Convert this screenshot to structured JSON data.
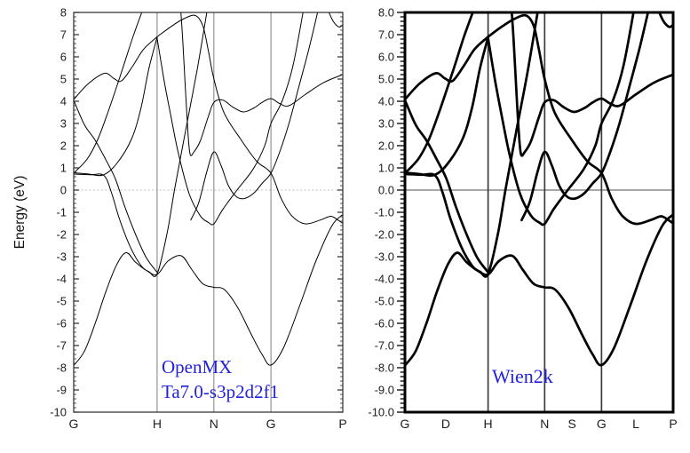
{
  "figure": {
    "background": "#ffffff",
    "curve_color": "#000000",
    "annotation_color": "#2222dd"
  },
  "left_panel": {
    "name": "openmx",
    "ylabel": "Energy (eV)",
    "annotation": {
      "line1": "OpenMX",
      "line2": "Ta7.0-s3p2d2f1"
    },
    "y_tick_labels": [
      "8",
      "7",
      "6",
      "5",
      "4",
      "3",
      "2",
      "1",
      "0",
      "-1",
      "-2",
      "-3",
      "-4",
      "-5",
      "-6",
      "-7",
      "-8",
      "-9",
      "-10"
    ],
    "x_ticks": [
      {
        "label": "G",
        "t": 0,
        "line": false
      },
      {
        "label": "H",
        "t": 0.31,
        "line": true
      },
      {
        "label": "N",
        "t": 0.521,
        "line": true
      },
      {
        "label": "G",
        "t": 0.733,
        "line": true
      },
      {
        "label": "P",
        "t": 1,
        "line": false
      }
    ]
  },
  "right_panel": {
    "name": "wien2k",
    "annotation": {
      "line1": "Wien2k"
    },
    "y_tick_labels": [
      "8.0",
      "7.0",
      "6.0",
      "5.0",
      "4.0",
      "3.0",
      "2.0",
      "1.0",
      "0.0",
      "-1.0",
      "-2.0",
      "-3.0",
      "-4.0",
      "-5.0",
      "-6.0",
      "-7.0",
      "-8.0",
      "-9.0",
      "-10.0"
    ],
    "x_ticks": [
      {
        "label": "G",
        "t": 0,
        "line": false
      },
      {
        "label": "D",
        "t": 0.152,
        "line": false
      },
      {
        "label": "H",
        "t": 0.31,
        "line": true
      },
      {
        "label": "N",
        "t": 0.521,
        "line": true
      },
      {
        "label": "S",
        "t": 0.623,
        "line": false
      },
      {
        "label": "G",
        "t": 0.733,
        "line": true
      },
      {
        "label": "L",
        "t": 0.861,
        "line": false
      },
      {
        "label": "P",
        "t": 1,
        "line": false
      }
    ]
  },
  "chart_data": {
    "type": "line",
    "title": "",
    "xlabel": "",
    "ylabel": "Energy (eV)",
    "ylim": [
      -10,
      8
    ],
    "fermi_level": 0,
    "x_unit": "fraction along k-path G-H-N-G-P",
    "legend": "none",
    "grid": "vertical lines at high-symmetry points; horizontal line at E=0",
    "panels": [
      {
        "label": "OpenMX Ta7.0-s3p2d2f1",
        "line_width": 1.0,
        "kpath": [
          "G",
          "H",
          "N",
          "G",
          "P"
        ],
        "kpath_t": [
          0,
          0.31,
          0.521,
          0.733,
          1
        ]
      },
      {
        "label": "Wien2k",
        "line_width": 2.7,
        "kpath": [
          "G",
          "D",
          "H",
          "N",
          "S",
          "G",
          "L",
          "P"
        ],
        "kpath_t": [
          0,
          0.152,
          0.31,
          0.521,
          0.623,
          0.733,
          0.861,
          1
        ]
      }
    ],
    "bands": [
      [
        [
          0,
          -7.9
        ],
        [
          0.04,
          -7.25
        ],
        [
          0.08,
          -6.0
        ],
        [
          0.12,
          -4.55
        ],
        [
          0.16,
          -3.35
        ],
        [
          0.195,
          -2.82
        ],
        [
          0.23,
          -3.25
        ],
        [
          0.27,
          -3.62
        ],
        [
          0.31,
          -3.8
        ],
        [
          0.35,
          -3.2
        ],
        [
          0.4,
          -2.96
        ],
        [
          0.44,
          -3.6
        ],
        [
          0.48,
          -4.22
        ],
        [
          0.521,
          -4.38
        ],
        [
          0.56,
          -4.48
        ],
        [
          0.61,
          -5.3
        ],
        [
          0.66,
          -6.5
        ],
        [
          0.7,
          -7.4
        ],
        [
          0.733,
          -7.88
        ],
        [
          0.78,
          -7.1
        ],
        [
          0.84,
          -5.2
        ],
        [
          0.9,
          -3.2
        ],
        [
          0.96,
          -1.6
        ],
        [
          1,
          -1.1
        ]
      ],
      [
        [
          0,
          0.72
        ],
        [
          0.06,
          0.69
        ],
        [
          0.112,
          0.66
        ],
        [
          0.14,
          -0.1
        ],
        [
          0.17,
          -1.3
        ],
        [
          0.21,
          -2.55
        ],
        [
          0.25,
          -3.4
        ],
        [
          0.28,
          -3.68
        ],
        [
          0.31,
          -3.78
        ],
        [
          0.347,
          -1.95
        ],
        [
          0.376,
          0.1
        ],
        [
          0.42,
          2.95
        ],
        [
          0.46,
          5.5
        ],
        [
          0.5,
          8.4
        ]
      ],
      [
        [
          0,
          0.78
        ],
        [
          0.05,
          0.73
        ],
        [
          0.11,
          0.68
        ],
        [
          0.16,
          1.2
        ],
        [
          0.215,
          2.3
        ],
        [
          0.25,
          3.7
        ],
        [
          0.28,
          5.5
        ],
        [
          0.31,
          6.88
        ]
      ],
      [
        [
          0,
          0.76
        ],
        [
          0.05,
          1.4
        ],
        [
          0.09,
          2.3
        ],
        [
          0.13,
          3.6
        ],
        [
          0.18,
          5.4
        ],
        [
          0.22,
          6.9
        ],
        [
          0.265,
          8.4
        ]
      ],
      [
        [
          0,
          4.05
        ],
        [
          0.04,
          2.94
        ],
        [
          0.079,
          2.26
        ],
        [
          0.12,
          1.35
        ],
        [
          0.155,
          0.5
        ],
        [
          0.19,
          -0.75
        ],
        [
          0.23,
          -2.0
        ],
        [
          0.27,
          -3.05
        ],
        [
          0.31,
          -3.7
        ]
      ],
      [
        [
          0,
          4.08
        ],
        [
          0.055,
          4.8
        ],
        [
          0.115,
          5.26
        ],
        [
          0.15,
          5.02
        ],
        [
          0.178,
          4.92
        ],
        [
          0.22,
          5.6
        ],
        [
          0.26,
          6.35
        ],
        [
          0.31,
          6.9
        ]
      ],
      [
        [
          0.31,
          6.9
        ],
        [
          0.36,
          7.35
        ],
        [
          0.41,
          7.72
        ],
        [
          0.452,
          7.86
        ],
        [
          0.48,
          7.4
        ],
        [
          0.5,
          6.3
        ],
        [
          0.521,
          5.0
        ],
        [
          0.558,
          3.5
        ],
        [
          0.62,
          2.3
        ],
        [
          0.68,
          1.3
        ],
        [
          0.733,
          0.76
        ],
        [
          0.77,
          -0.35
        ],
        [
          0.81,
          -1.15
        ],
        [
          0.86,
          -1.52
        ],
        [
          0.92,
          -1.33
        ],
        [
          0.955,
          -1.18
        ],
        [
          0.98,
          -1.33
        ],
        [
          1,
          -1.5
        ]
      ],
      [
        [
          0.396,
          8.4
        ],
        [
          0.405,
          6.8
        ],
        [
          0.415,
          4.6
        ],
        [
          0.425,
          2.5
        ],
        [
          0.433,
          1.6
        ],
        [
          0.447,
          1.72
        ],
        [
          0.47,
          2.2
        ],
        [
          0.5,
          3.3
        ],
        [
          0.521,
          3.95
        ],
        [
          0.555,
          4.05
        ],
        [
          0.59,
          3.75
        ],
        [
          0.63,
          3.52
        ],
        [
          0.67,
          3.7
        ],
        [
          0.7,
          3.95
        ],
        [
          0.733,
          4.12
        ],
        [
          0.765,
          3.9
        ],
        [
          0.8,
          3.8
        ],
        [
          0.86,
          4.3
        ],
        [
          0.93,
          4.85
        ],
        [
          1,
          5.2
        ]
      ],
      [
        [
          0.31,
          6.85
        ],
        [
          0.335,
          5.0
        ],
        [
          0.36,
          3.4
        ],
        [
          0.39,
          1.6
        ],
        [
          0.43,
          -0.2
        ],
        [
          0.47,
          -1.15
        ],
        [
          0.5,
          -1.45
        ],
        [
          0.521,
          -1.52
        ],
        [
          0.555,
          -0.85
        ],
        [
          0.607,
          0.0
        ],
        [
          0.667,
          0.95
        ],
        [
          0.71,
          2.0
        ],
        [
          0.733,
          3.0
        ],
        [
          0.776,
          4.05
        ],
        [
          0.815,
          5.6
        ],
        [
          0.858,
          8.4
        ]
      ],
      [
        [
          0.435,
          -1.35
        ],
        [
          0.465,
          -0.55
        ],
        [
          0.495,
          0.85
        ],
        [
          0.521,
          1.72
        ],
        [
          0.548,
          1.1
        ],
        [
          0.575,
          0.2
        ],
        [
          0.605,
          -0.3
        ],
        [
          0.635,
          -0.38
        ],
        [
          0.67,
          -0.13
        ],
        [
          0.7,
          0.3
        ],
        [
          0.733,
          0.76
        ],
        [
          0.765,
          1.7
        ],
        [
          0.8,
          3.0
        ],
        [
          0.84,
          4.8
        ],
        [
          0.875,
          6.4
        ],
        [
          0.914,
          8.4
        ]
      ],
      [
        [
          0.935,
          8.4
        ],
        [
          0.962,
          7.65
        ],
        [
          0.985,
          7.35
        ],
        [
          1,
          7.45
        ]
      ]
    ]
  }
}
